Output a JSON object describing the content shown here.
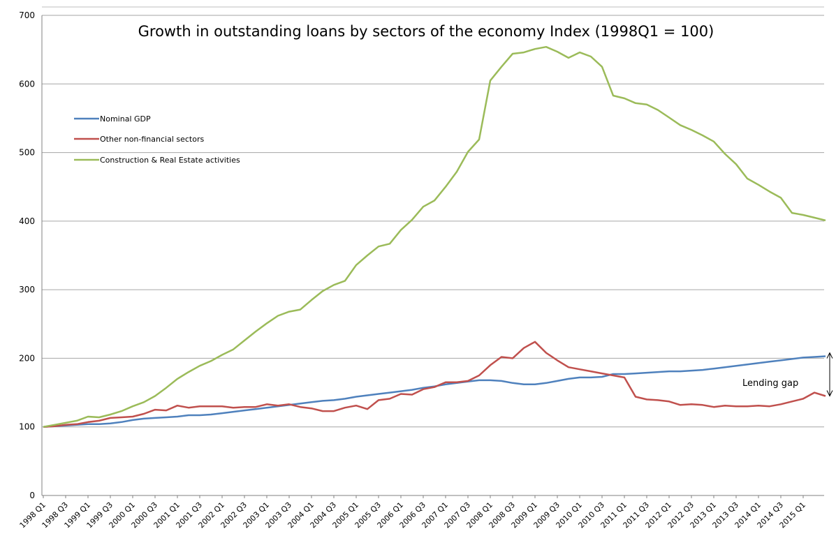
{
  "chart_data": {
    "type": "line",
    "title": "Growth in outstanding loans by sectors of the economy Index (1998Q1 = 100)",
    "xlabel": "",
    "ylabel": "",
    "ylim": [
      0,
      700
    ],
    "yticks": [
      0,
      100,
      200,
      300,
      400,
      500,
      600,
      700
    ],
    "grid": true,
    "legend_position": "top-left",
    "x": [
      "1998 Q1",
      "1998 Q2",
      "1998 Q3",
      "1998 Q4",
      "1999 Q1",
      "1999 Q2",
      "1999 Q3",
      "1999 Q4",
      "2000 Q1",
      "2000 Q2",
      "2000 Q3",
      "2000 Q4",
      "2001 Q1",
      "2001 Q2",
      "2001 Q3",
      "2001 Q4",
      "2002 Q1",
      "2002 Q2",
      "2002 Q3",
      "2002 Q4",
      "2003 Q1",
      "2003 Q2",
      "2003 Q3",
      "2003 Q4",
      "2004 Q1",
      "2004 Q2",
      "2004 Q3",
      "2004 Q4",
      "2005 Q1",
      "2005 Q2",
      "2005 Q3",
      "2005 Q4",
      "2006 Q1",
      "2006 Q2",
      "2006 Q3",
      "2006 Q4",
      "2007 Q1",
      "2007 Q2",
      "2007 Q3",
      "2007 Q4",
      "2008 Q1",
      "2008 Q2",
      "2008 Q3",
      "2008 Q4",
      "2009 Q1",
      "2009 Q2",
      "2009 Q3",
      "2009 Q4",
      "2010 Q1",
      "2010 Q2",
      "2010 Q3",
      "2010 Q4",
      "2011 Q1",
      "2011 Q2",
      "2011 Q3",
      "2011 Q4",
      "2012 Q1",
      "2012 Q2",
      "2012 Q3",
      "2012 Q4",
      "2013 Q1",
      "2013 Q2",
      "2013 Q3",
      "2013 Q4",
      "2014 Q1",
      "2014 Q2",
      "2014 Q3",
      "2014 Q4",
      "2015 Q1",
      "2015 Q2",
      "2015 Q3"
    ],
    "x_tick_labels": [
      "1998 Q1",
      "1998 Q3",
      "1999 Q1",
      "1999 Q3",
      "2000 Q1",
      "2000 Q3",
      "2001 Q1",
      "2001 Q3",
      "2002 Q1",
      "2002 Q3",
      "2003 Q1",
      "2003 Q3",
      "2004 Q1",
      "2004 Q3",
      "2005 Q1",
      "2005 Q3",
      "2006 Q1",
      "2006 Q3",
      "2007 Q1",
      "2007 Q3",
      "2008 Q1",
      "2008 Q3",
      "2009 Q1",
      "2009 Q3",
      "2010 Q1",
      "2010 Q3",
      "2011 Q1",
      "2011 Q3",
      "2012 Q1",
      "2012 Q3",
      "2013 Q1",
      "2013 Q3",
      "2014 Q1",
      "2014 Q3",
      "2015 Q1"
    ],
    "series": [
      {
        "name": "Nominal GDP",
        "color": "#4f81bd",
        "values": [
          100,
          101,
          102,
          103,
          104,
          104,
          105,
          107,
          110,
          112,
          113,
          114,
          115,
          117,
          117,
          118,
          120,
          122,
          124,
          126,
          128,
          130,
          132,
          134,
          136,
          138,
          139,
          141,
          144,
          146,
          148,
          150,
          152,
          154,
          157,
          159,
          162,
          164,
          166,
          168,
          168,
          167,
          164,
          162,
          162,
          164,
          167,
          170,
          172,
          172,
          173,
          177,
          177,
          178,
          179,
          180,
          181,
          181,
          182,
          183,
          185,
          187,
          189,
          191,
          193,
          195,
          197,
          199,
          201,
          202,
          203
        ]
      },
      {
        "name": "Other non-financial sectors",
        "color": "#c0504d",
        "values": [
          100,
          101,
          103,
          104,
          107,
          109,
          113,
          114,
          115,
          119,
          125,
          124,
          131,
          128,
          130,
          130,
          130,
          128,
          129,
          129,
          133,
          131,
          133,
          129,
          127,
          123,
          123,
          128,
          131,
          126,
          139,
          141,
          148,
          147,
          155,
          158,
          165,
          165,
          167,
          175,
          190,
          202,
          200,
          215,
          224,
          208,
          197,
          187,
          184,
          181,
          178,
          175,
          172,
          144,
          140,
          139,
          137,
          132,
          133,
          132,
          129,
          131,
          130,
          130,
          131,
          130,
          133,
          137,
          141,
          150,
          145
        ]
      },
      {
        "name": "Construction & Real Estate activities",
        "color": "#9bbb59",
        "values": [
          100,
          103,
          106,
          109,
          115,
          114,
          118,
          123,
          130,
          136,
          145,
          157,
          170,
          180,
          189,
          196,
          205,
          213,
          226,
          239,
          251,
          262,
          268,
          271,
          285,
          298,
          307,
          313,
          336,
          350,
          363,
          367,
          387,
          402,
          421,
          430,
          450,
          472,
          501,
          519,
          605,
          625,
          644,
          646,
          651,
          654,
          647,
          638,
          646,
          640,
          625,
          583,
          579,
          572,
          570,
          562,
          551,
          540,
          533,
          525,
          516,
          498,
          483,
          462,
          453,
          443,
          434,
          412,
          409,
          405,
          401
        ]
      }
    ],
    "annotations": [
      {
        "text": "Lending gap"
      }
    ]
  }
}
